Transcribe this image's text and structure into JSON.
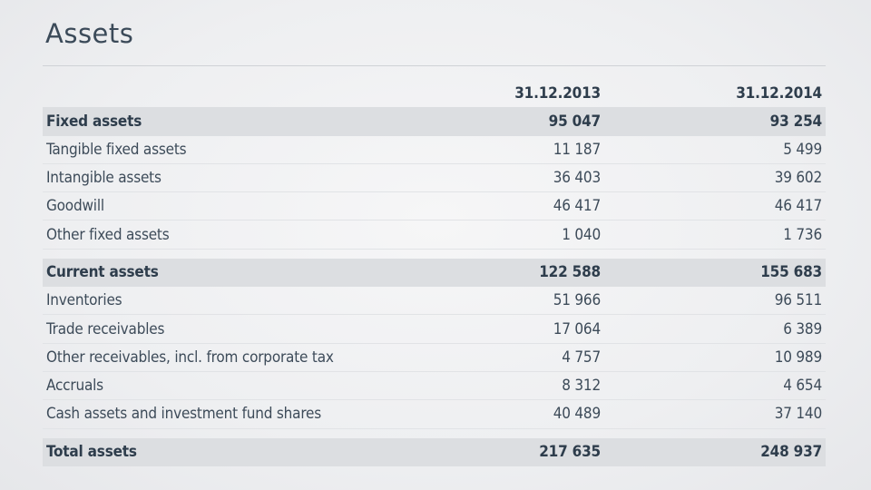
{
  "page": {
    "title": "Assets"
  },
  "table": {
    "columns": [
      "31.12.2013",
      "31.12.2014"
    ],
    "sections": [
      {
        "header": {
          "label": "Fixed assets",
          "v1": "95 047",
          "v2": "93 254"
        },
        "rows": [
          {
            "label": "Tangible fixed assets",
            "v1": "11 187",
            "v2": "5 499"
          },
          {
            "label": "Intangible assets",
            "v1": "36 403",
            "v2": "39 602"
          },
          {
            "label": "Goodwill",
            "v1": "46 417",
            "v2": "46 417"
          },
          {
            "label": "Other fixed assets",
            "v1": "1 040",
            "v2": "1 736"
          }
        ]
      },
      {
        "header": {
          "label": "Current assets",
          "v1": "122 588",
          "v2": "155 683"
        },
        "rows": [
          {
            "label": "Inventories",
            "v1": "51 966",
            "v2": "96 511"
          },
          {
            "label": "Trade receivables",
            "v1": "17 064",
            "v2": "6 389"
          },
          {
            "label": "Other receivables, incl. from corporate tax",
            "v1": "4 757",
            "v2": "10 989"
          },
          {
            "label": "Accruals",
            "v1": "8 312",
            "v2": "4 654"
          },
          {
            "label": "Cash assets and investment fund shares",
            "v1": "40 489",
            "v2": "37 140"
          }
        ]
      }
    ],
    "total": {
      "label": "Total assets",
      "v1": "217 635",
      "v2": "248 937"
    }
  }
}
